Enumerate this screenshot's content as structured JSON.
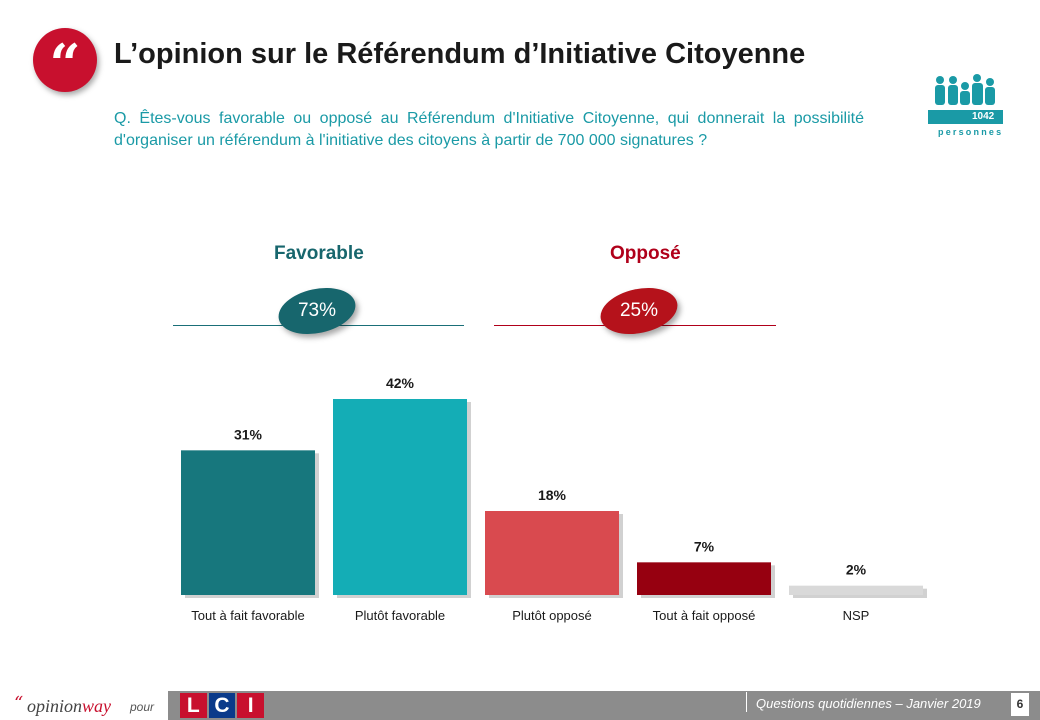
{
  "header": {
    "title": "L’opinion sur le Référendum d’Initiative Citoyenne",
    "question": "Q. Êtes-vous favorable ou opposé au Référendum d'Initiative Citoyenne, qui donnerait la possibilité d'organiser un référendum à l'initiative des citoyens à partir de 700 000 signatures ?"
  },
  "sample": {
    "count": "1042",
    "label": "personnes"
  },
  "groups": {
    "favorable": {
      "label": "Favorable",
      "value": "73%"
    },
    "oppose": {
      "label": "Opposé",
      "value": "25%"
    }
  },
  "colors": {
    "teal_dark": "#17777d",
    "teal": "#14adb6",
    "red_light": "#d94a4f",
    "red_dark": "#960010",
    "grey": "#d9d9d9",
    "brand_red": "#c8102e",
    "accent_teal": "#1a9aa6"
  },
  "chart_data": {
    "type": "bar",
    "categories": [
      "Tout à fait favorable",
      "Plutôt favorable",
      "Plutôt opposé",
      "Tout à fait opposé",
      "NSP"
    ],
    "values": [
      31,
      42,
      18,
      7,
      2
    ],
    "value_labels": [
      "31%",
      "42%",
      "18%",
      "7%",
      "2%"
    ],
    "bar_colors": [
      "#17777d",
      "#14adb6",
      "#d94a4f",
      "#960010",
      "#d9d9d9"
    ],
    "unit": "%",
    "title": "",
    "xlabel": "",
    "ylabel": "",
    "ylim": [
      0,
      42
    ]
  },
  "footer": {
    "brand_quote": "“",
    "brand_part1": "opinion",
    "brand_part2": "way",
    "pour": "pour",
    "partner": [
      "L",
      "C",
      "I"
    ],
    "source": "Questions quotidiennes – Janvier 2019",
    "page": "6"
  }
}
